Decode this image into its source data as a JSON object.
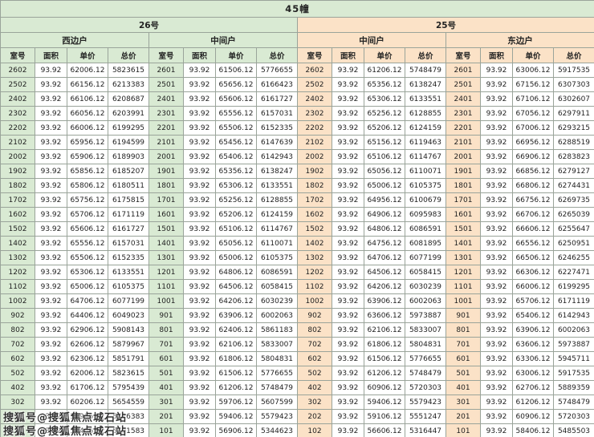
{
  "table": {
    "title": "45幢",
    "col_headers": [
      "室号",
      "面积",
      "单价",
      "总价"
    ],
    "buildings": [
      {
        "name": "26号",
        "side": "green"
      },
      {
        "name": "25号",
        "side": "orange"
      }
    ],
    "groups": [
      {
        "building": "26号",
        "unit": "西边户",
        "side": "green",
        "rows": [
          [
            "2602",
            "93.92",
            "62006.12",
            "5823615"
          ],
          [
            "2502",
            "93.92",
            "66156.12",
            "6213383"
          ],
          [
            "2402",
            "93.92",
            "66106.12",
            "6208687"
          ],
          [
            "2302",
            "93.92",
            "66056.12",
            "6203991"
          ],
          [
            "2202",
            "93.92",
            "66006.12",
            "6199295"
          ],
          [
            "2102",
            "93.92",
            "65956.12",
            "6194599"
          ],
          [
            "2002",
            "93.92",
            "65906.12",
            "6189903"
          ],
          [
            "1902",
            "93.92",
            "65856.12",
            "6185207"
          ],
          [
            "1802",
            "93.92",
            "65806.12",
            "6180511"
          ],
          [
            "1702",
            "93.92",
            "65756.12",
            "6175815"
          ],
          [
            "1602",
            "93.92",
            "65706.12",
            "6171119"
          ],
          [
            "1502",
            "93.92",
            "65606.12",
            "6161727"
          ],
          [
            "1402",
            "93.92",
            "65556.12",
            "6157031"
          ],
          [
            "1302",
            "93.92",
            "65506.12",
            "6152335"
          ],
          [
            "1202",
            "93.92",
            "65306.12",
            "6133551"
          ],
          [
            "1102",
            "93.92",
            "65006.12",
            "6105375"
          ],
          [
            "1002",
            "93.92",
            "64706.12",
            "6077199"
          ],
          [
            "902",
            "93.92",
            "64406.12",
            "6049023"
          ],
          [
            "802",
            "93.92",
            "62906.12",
            "5908143"
          ],
          [
            "702",
            "93.92",
            "62606.12",
            "5879967"
          ],
          [
            "602",
            "93.92",
            "62306.12",
            "5851791"
          ],
          [
            "502",
            "93.92",
            "62006.12",
            "5823615"
          ],
          [
            "402",
            "93.92",
            "61706.12",
            "5795439"
          ],
          [
            "302",
            "93.92",
            "60206.12",
            "5654559"
          ],
          [
            "202",
            "93.92",
            "59906.12",
            "5626383"
          ],
          [
            "102",
            "93.92",
            "57406.12",
            "5391583"
          ]
        ]
      },
      {
        "building": "26号",
        "unit": "中间户",
        "side": "green",
        "rows": [
          [
            "2601",
            "93.92",
            "61506.12",
            "5776655"
          ],
          [
            "2501",
            "93.92",
            "65656.12",
            "6166423"
          ],
          [
            "2401",
            "93.92",
            "65606.12",
            "6161727"
          ],
          [
            "2301",
            "93.92",
            "65556.12",
            "6157031"
          ],
          [
            "2201",
            "93.92",
            "65506.12",
            "6152335"
          ],
          [
            "2101",
            "93.92",
            "65456.12",
            "6147639"
          ],
          [
            "2001",
            "93.92",
            "65406.12",
            "6142943"
          ],
          [
            "1901",
            "93.92",
            "65356.12",
            "6138247"
          ],
          [
            "1801",
            "93.92",
            "65306.12",
            "6133551"
          ],
          [
            "1701",
            "93.92",
            "65256.12",
            "6128855"
          ],
          [
            "1601",
            "93.92",
            "65206.12",
            "6124159"
          ],
          [
            "1501",
            "93.92",
            "65106.12",
            "6114767"
          ],
          [
            "1401",
            "93.92",
            "65056.12",
            "6110071"
          ],
          [
            "1301",
            "93.92",
            "65006.12",
            "6105375"
          ],
          [
            "1201",
            "93.92",
            "64806.12",
            "6086591"
          ],
          [
            "1101",
            "93.92",
            "64506.12",
            "6058415"
          ],
          [
            "1001",
            "93.92",
            "64206.12",
            "6030239"
          ],
          [
            "901",
            "93.92",
            "63906.12",
            "6002063"
          ],
          [
            "801",
            "93.92",
            "62406.12",
            "5861183"
          ],
          [
            "701",
            "93.92",
            "62106.12",
            "5833007"
          ],
          [
            "601",
            "93.92",
            "61806.12",
            "5804831"
          ],
          [
            "501",
            "93.92",
            "61506.12",
            "5776655"
          ],
          [
            "401",
            "93.92",
            "61206.12",
            "5748479"
          ],
          [
            "301",
            "93.92",
            "59706.12",
            "5607599"
          ],
          [
            "201",
            "93.92",
            "59406.12",
            "5579423"
          ],
          [
            "101",
            "93.92",
            "56906.12",
            "5344623"
          ]
        ]
      },
      {
        "building": "25号",
        "unit": "中间户",
        "side": "orange",
        "rows": [
          [
            "2602",
            "93.92",
            "61206.12",
            "5748479"
          ],
          [
            "2502",
            "93.92",
            "65356.12",
            "6138247"
          ],
          [
            "2402",
            "93.92",
            "65306.12",
            "6133551"
          ],
          [
            "2302",
            "93.92",
            "65256.12",
            "6128855"
          ],
          [
            "2202",
            "93.92",
            "65206.12",
            "6124159"
          ],
          [
            "2102",
            "93.92",
            "65156.12",
            "6119463"
          ],
          [
            "2002",
            "93.92",
            "65106.12",
            "6114767"
          ],
          [
            "1902",
            "93.92",
            "65056.12",
            "6110071"
          ],
          [
            "1802",
            "93.92",
            "65006.12",
            "6105375"
          ],
          [
            "1702",
            "93.92",
            "64956.12",
            "6100679"
          ],
          [
            "1602",
            "93.92",
            "64906.12",
            "6095983"
          ],
          [
            "1502",
            "93.92",
            "64806.12",
            "6086591"
          ],
          [
            "1402",
            "93.92",
            "64756.12",
            "6081895"
          ],
          [
            "1302",
            "93.92",
            "64706.12",
            "6077199"
          ],
          [
            "1202",
            "93.92",
            "64506.12",
            "6058415"
          ],
          [
            "1102",
            "93.92",
            "64206.12",
            "6030239"
          ],
          [
            "1002",
            "93.92",
            "63906.12",
            "6002063"
          ],
          [
            "902",
            "93.92",
            "63606.12",
            "5973887"
          ],
          [
            "802",
            "93.92",
            "62106.12",
            "5833007"
          ],
          [
            "702",
            "93.92",
            "61806.12",
            "5804831"
          ],
          [
            "602",
            "93.92",
            "61506.12",
            "5776655"
          ],
          [
            "502",
            "93.92",
            "61206.12",
            "5748479"
          ],
          [
            "402",
            "93.92",
            "60906.12",
            "5720303"
          ],
          [
            "302",
            "93.92",
            "59406.12",
            "5579423"
          ],
          [
            "202",
            "93.92",
            "59106.12",
            "5551247"
          ],
          [
            "102",
            "93.92",
            "56606.12",
            "5316447"
          ]
        ]
      },
      {
        "building": "25号",
        "unit": "东边户",
        "side": "orange",
        "rows": [
          [
            "2601",
            "93.92",
            "63006.12",
            "5917535"
          ],
          [
            "2501",
            "93.92",
            "67156.12",
            "6307303"
          ],
          [
            "2401",
            "93.92",
            "67106.12",
            "6302607"
          ],
          [
            "2301",
            "93.92",
            "67056.12",
            "6297911"
          ],
          [
            "2201",
            "93.92",
            "67006.12",
            "6293215"
          ],
          [
            "2101",
            "93.92",
            "66956.12",
            "6288519"
          ],
          [
            "2001",
            "93.92",
            "66906.12",
            "6283823"
          ],
          [
            "1901",
            "93.92",
            "66856.12",
            "6279127"
          ],
          [
            "1801",
            "93.92",
            "66806.12",
            "6274431"
          ],
          [
            "1701",
            "93.92",
            "66756.12",
            "6269735"
          ],
          [
            "1601",
            "93.92",
            "66706.12",
            "6265039"
          ],
          [
            "1501",
            "93.92",
            "66606.12",
            "6255647"
          ],
          [
            "1401",
            "93.92",
            "66556.12",
            "6250951"
          ],
          [
            "1301",
            "93.92",
            "66506.12",
            "6246255"
          ],
          [
            "1201",
            "93.92",
            "66306.12",
            "6227471"
          ],
          [
            "1101",
            "93.92",
            "66006.12",
            "6199295"
          ],
          [
            "1001",
            "93.92",
            "65706.12",
            "6171119"
          ],
          [
            "901",
            "93.92",
            "65406.12",
            "6142943"
          ],
          [
            "801",
            "93.92",
            "63906.12",
            "6002063"
          ],
          [
            "701",
            "93.92",
            "63606.12",
            "5973887"
          ],
          [
            "601",
            "93.92",
            "63306.12",
            "5945711"
          ],
          [
            "501",
            "93.92",
            "63006.12",
            "5917535"
          ],
          [
            "401",
            "93.92",
            "62706.12",
            "5889359"
          ],
          [
            "301",
            "93.92",
            "61206.12",
            "5748479"
          ],
          [
            "201",
            "93.92",
            "60906.12",
            "5720303"
          ],
          [
            "101",
            "93.92",
            "58406.12",
            "5485503"
          ]
        ]
      }
    ]
  },
  "watermark": {
    "line1": "搜狐号@搜狐焦点城石站",
    "line2": "搜狐号@搜狐焦点城石站"
  },
  "colors": {
    "green_header": "#d9ead3",
    "orange_header": "#fbe2c7",
    "border": "#9aa49a"
  }
}
